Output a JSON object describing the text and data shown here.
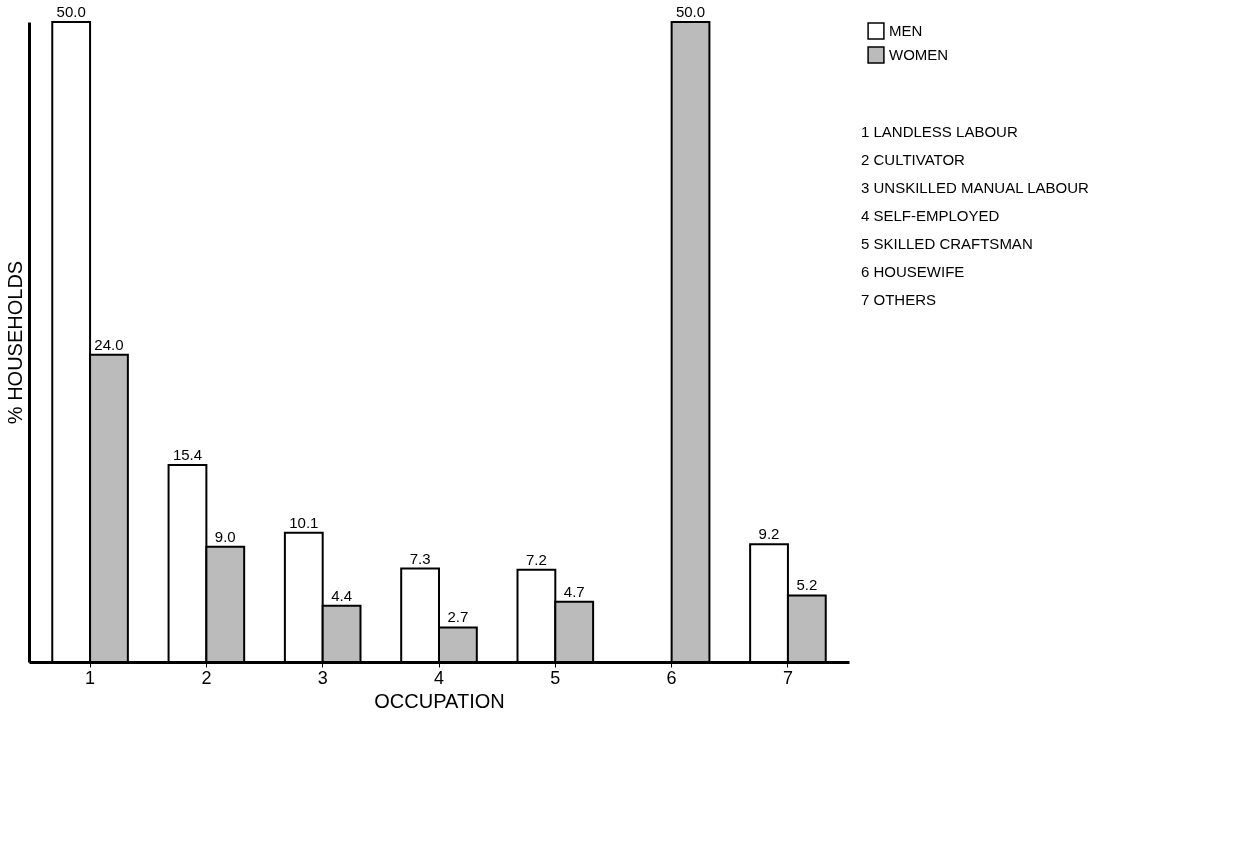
{
  "chart_data": {
    "type": "bar",
    "xlabel": "OCCUPATION",
    "ylabel": "% HOUSEHOLDS",
    "categories": [
      "1",
      "2",
      "3",
      "4",
      "5",
      "6",
      "7"
    ],
    "series": [
      {
        "name": "MEN",
        "color": "#ffffff",
        "values": [
          50.0,
          15.4,
          10.1,
          7.3,
          7.2,
          null,
          9.2
        ],
        "value_labels": [
          "50.0",
          "15.4",
          "10.1",
          "7.3",
          "7.2",
          null,
          "9.2"
        ]
      },
      {
        "name": "WOMEN",
        "color": "#bbbbbb",
        "values": [
          24.0,
          9.0,
          4.4,
          2.7,
          4.7,
          50.0,
          5.2
        ],
        "value_labels": [
          "24.0",
          "9.0",
          "4.4",
          "2.7",
          "4.7",
          "50.0",
          "5.2"
        ]
      }
    ],
    "annotations": [
      "1 LANDLESS LABOUR",
      "2 CULTIVATOR",
      "3 UNSKILLED MANUAL LABOUR",
      "4 SELF-EMPLOYED",
      "5 SKILLED CRAFTSMAN",
      "6 HOUSEWIFE",
      "7 OTHERS"
    ],
    "legend": "top right",
    "grid": false,
    "tick_labels": "x"
  }
}
